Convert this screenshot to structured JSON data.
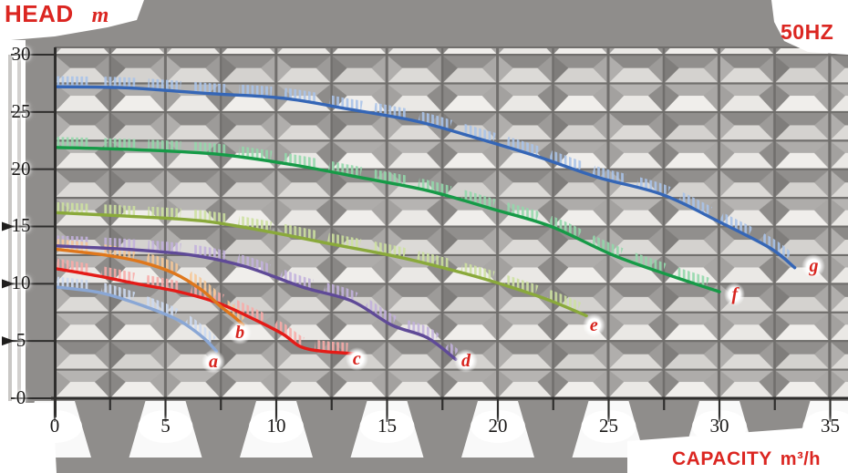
{
  "titles": {
    "head_word": "HEAD",
    "head_unit": "m",
    "frequency": "50HZ",
    "capacity_word": "CAPACITY",
    "capacity_unit": "m³/h"
  },
  "x_axis": {
    "title": "CAPACITY m³/h",
    "tick_values": [
      0,
      5,
      10,
      15,
      20,
      25,
      30,
      35
    ],
    "tick_labels": [
      "0",
      "5",
      "10",
      "15",
      "20",
      "25",
      "30",
      "35"
    ],
    "minor_step": 2.5,
    "range": [
      0,
      35.8
    ]
  },
  "y_axis": {
    "title": "HEAD m",
    "tick_values": [
      30,
      25,
      20,
      15,
      10,
      5,
      0
    ],
    "tick_labels": [
      "30",
      "25",
      "20",
      "15",
      "10",
      "5",
      "0"
    ],
    "minor_step": 2.5,
    "range": [
      0,
      30.6
    ]
  },
  "chart_data": {
    "type": "line",
    "title": "Pump performance curves, HEAD (m) vs CAPACITY (m³/h) at 50HZ",
    "xlabel": "CAPACITY m³/h",
    "ylabel": "HEAD m",
    "xlim": [
      0,
      35.8
    ],
    "ylim": [
      0,
      30.6
    ],
    "grid": "2.5 x 2.5 embossed tile grid",
    "legend_position": "red letters at curve ends",
    "series": [
      {
        "label": "g",
        "color": "#3566b6",
        "band_color": "#a9c3e9",
        "x": [
          0.1,
          3.3,
          7.0,
          10.3,
          13.4,
          16.3,
          18.9,
          21.8,
          24.5,
          27.4,
          30.0,
          32.3,
          33.4
        ],
        "y": [
          27.2,
          27.1,
          26.6,
          26.2,
          25.2,
          24.2,
          22.8,
          21.1,
          19.3,
          17.8,
          15.4,
          13.1,
          11.4
        ],
        "label_xy": [
          34.3,
          11.5
        ]
      },
      {
        "label": "f",
        "color": "#169a47",
        "band_color": "#93d8ab",
        "x": [
          0.1,
          3.7,
          7.4,
          10.7,
          14.0,
          16.9,
          19.8,
          22.4,
          25.2,
          27.8,
          30.0
        ],
        "y": [
          21.9,
          21.7,
          21.3,
          20.4,
          19.2,
          18.1,
          16.5,
          15.0,
          12.5,
          10.7,
          9.3
        ],
        "label_xy": [
          30.8,
          9.1
        ]
      },
      {
        "label": "e",
        "color": "#8aa93b",
        "band_color": "#cde1a0",
        "x": [
          0.1,
          3.3,
          6.6,
          9.5,
          12.4,
          15.6,
          18.5,
          20.6,
          22.4,
          24.0
        ],
        "y": [
          16.2,
          15.9,
          15.5,
          14.6,
          13.5,
          12.3,
          10.9,
          9.7,
          8.5,
          7.2
        ],
        "label_xy": [
          24.4,
          6.4
        ]
      },
      {
        "label": "d",
        "color": "#5f4a97",
        "band_color": "#c2b1dc",
        "x": [
          0.1,
          3.3,
          6.2,
          8.6,
          11.2,
          13.4,
          15.2,
          16.8,
          18.1
        ],
        "y": [
          13.3,
          13.0,
          12.5,
          11.5,
          9.7,
          8.5,
          6.4,
          5.3,
          3.4
        ],
        "label_xy": [
          18.6,
          3.3
        ]
      },
      {
        "label": "c",
        "color": "#e41b17",
        "band_color": "#f8aba8",
        "x": [
          0.1,
          1.9,
          3.7,
          5.6,
          7.4,
          9.1,
          10.3,
          11.1,
          12.1,
          13.5
        ],
        "y": [
          11.3,
          10.7,
          10.0,
          9.3,
          8.3,
          6.8,
          5.6,
          4.5,
          4.1,
          3.9
        ],
        "label_xy": [
          13.7,
          3.4
        ]
      },
      {
        "label": "b",
        "color": "#df771c",
        "band_color": "#f6c898",
        "x": [
          0.1,
          2.3,
          3.9,
          5.4,
          6.6,
          7.5,
          8.1,
          8.5
        ],
        "y": [
          13.0,
          12.5,
          11.9,
          10.9,
          9.5,
          8.0,
          7.1,
          6.4
        ],
        "label_xy": [
          8.4,
          5.7
        ]
      },
      {
        "label": "a",
        "color": "#8aa7d5",
        "band_color": "#ccdaf1",
        "x": [
          0.1,
          2.1,
          4.1,
          5.6,
          6.7,
          7.3
        ],
        "y": [
          9.7,
          9.2,
          8.0,
          6.8,
          5.3,
          4.1
        ],
        "label_xy": [
          7.2,
          3.2
        ]
      }
    ]
  },
  "colors": {
    "background": "#8f8d8b",
    "label_red": "#db2621",
    "axis_text": "#1a1918",
    "grid_line": "#716f6d"
  }
}
